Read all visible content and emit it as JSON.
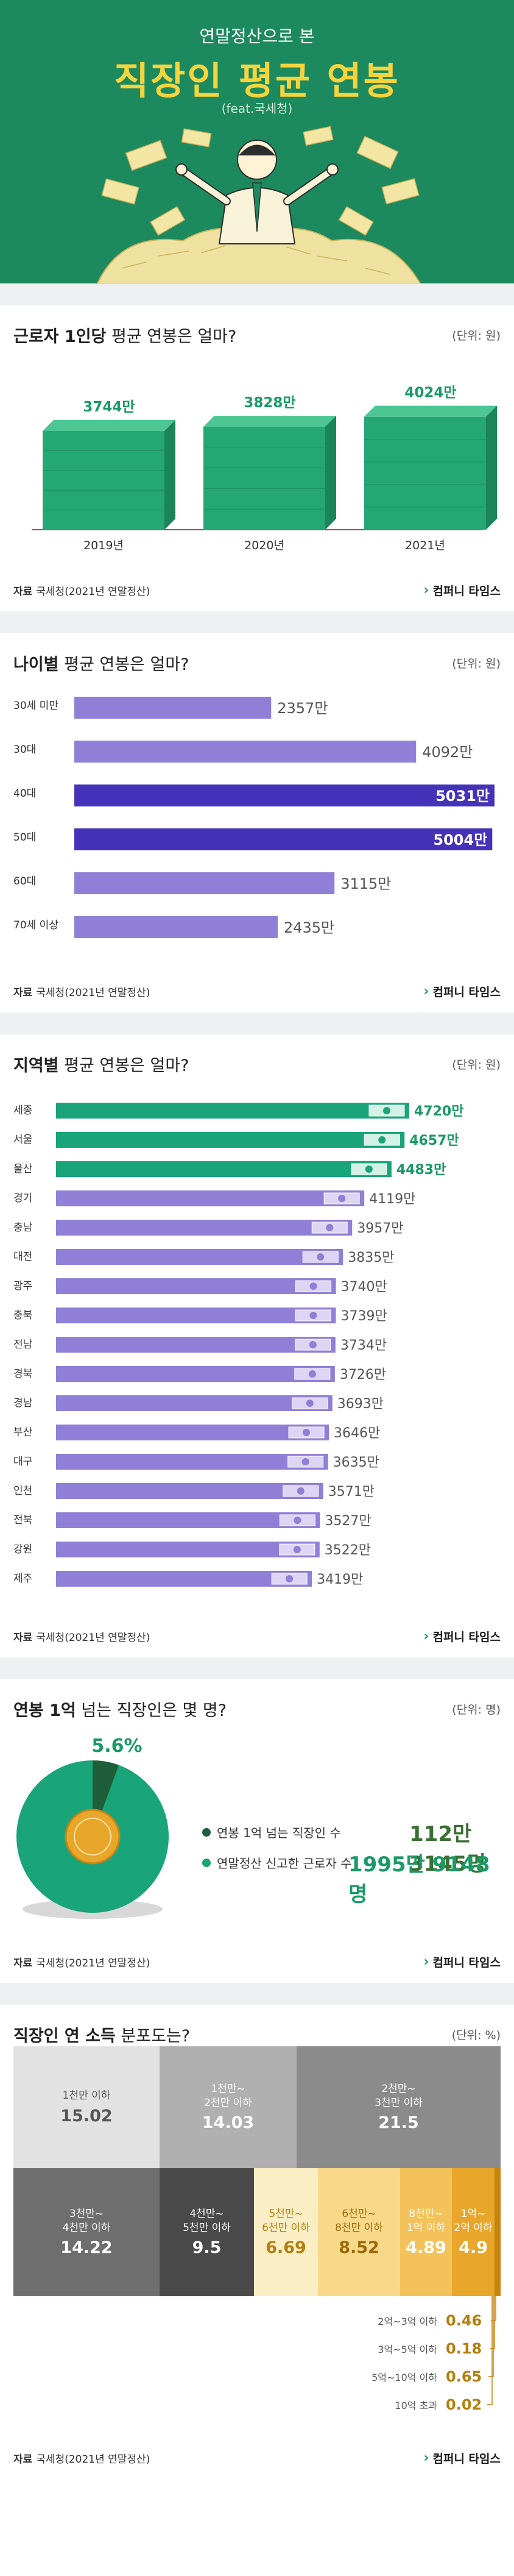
{
  "hero": {
    "pre_title": "연말정산으로 본",
    "title": "직장인 평균 연봉",
    "feat": "(feat.국세청)"
  },
  "colors": {
    "brand_green": "#1c8a5e",
    "accent_green": "#1aa47a",
    "purple_light": "#8f7fd6",
    "purple_dark": "#4433b8",
    "gold": "#e8a62a"
  },
  "common": {
    "source_label": "자료",
    "source_text": "국세청(2021년 연말정산)",
    "brand": "컴퍼니 타임스",
    "brand_icon": "chevron-logo-icon"
  },
  "sections": {
    "s1": {
      "title_bold": "근로자 1인당",
      "title_rest": " 평균 연봉은 얼마?",
      "unit": "(단위: 원)"
    },
    "s2": {
      "title_bold": "나이별",
      "title_rest": " 평균 연봉은 얼마?",
      "unit": "(단위: 원)"
    },
    "s3": {
      "title_bold": "지역별",
      "title_rest": " 평균 연봉은 얼마?",
      "unit": "(단위: 원)"
    },
    "s4": {
      "title_bold": "연봉 1억",
      "title_rest": " 넘는 직장인은 몇 명?",
      "unit": "(단위: 명)"
    },
    "s5": {
      "title_bold": "직장인 연 소득",
      "title_rest": " 분포도는?",
      "unit": "(단위: %)"
    }
  },
  "chart_data": [
    {
      "type": "bar",
      "categories": [
        "2019년",
        "2020년",
        "2021년"
      ],
      "values": [
        3744,
        3828,
        4024
      ],
      "value_labels": [
        "3744만",
        "3828만",
        "4024만"
      ],
      "unit": "(단위: 원)"
    },
    {
      "type": "bar",
      "orientation": "horizontal",
      "categories": [
        "30세 미만",
        "30대",
        "40대",
        "50대",
        "60대",
        "70세 이상"
      ],
      "values": [
        2357,
        4092,
        5031,
        5004,
        3115,
        2435
      ],
      "value_labels": [
        "2357만",
        "4092만",
        "5031만",
        "5004만",
        "3115만",
        "2435만"
      ],
      "highlight": [
        false,
        false,
        true,
        true,
        false,
        false
      ]
    },
    {
      "type": "bar",
      "orientation": "horizontal",
      "categories": [
        "세종",
        "서울",
        "울산",
        "경기",
        "충남",
        "대전",
        "광주",
        "충북",
        "전남",
        "경북",
        "경남",
        "부산",
        "대구",
        "인천",
        "전북",
        "강원",
        "제주"
      ],
      "values": [
        4720,
        4657,
        4483,
        4119,
        3957,
        3835,
        3740,
        3739,
        3734,
        3726,
        3693,
        3646,
        3635,
        3571,
        3527,
        3522,
        3419
      ],
      "value_labels": [
        "4720만",
        "4657만",
        "4483만",
        "4119만",
        "3957만",
        "3835만",
        "3740만",
        "3739만",
        "3734만",
        "3726만",
        "3693만",
        "3646만",
        "3635만",
        "3571만",
        "3527만",
        "3522만",
        "3419만"
      ],
      "highlight": [
        true,
        true,
        true,
        false,
        false,
        false,
        false,
        false,
        false,
        false,
        false,
        false,
        false,
        false,
        false,
        false,
        false
      ]
    },
    {
      "type": "pie",
      "slices": [
        {
          "name": "연봉 1억 넘는 직장인 수",
          "value": 1123145,
          "label": "112만 3145명"
        },
        {
          "name": "연말정산 신고한 근로자 수",
          "value": 19959148,
          "label": "1995만 9148명"
        }
      ],
      "percent_label": "5.6%",
      "percent": 5.6
    },
    {
      "type": "table",
      "title": "직장인 연 소득 분포도",
      "cells": [
        {
          "label": "1천만 이하",
          "value": "15.02"
        },
        {
          "label": "1천만~\n2천만 이하",
          "value": "14.03"
        },
        {
          "label": "2천만~\n3천만 이하",
          "value": "21.5"
        },
        {
          "label": "3천만~\n4천만 이하",
          "value": "14.22"
        },
        {
          "label": "4천만~\n5천만 이하",
          "value": "9.5"
        },
        {
          "label": "5천만~\n6천만 이하",
          "value": "6.69"
        },
        {
          "label": "6천만~\n8천만 이하",
          "value": "8.52"
        },
        {
          "label": "8천만~\n1억 이하",
          "value": "4.89"
        },
        {
          "label": "1억~\n2억 이하",
          "value": "4.9"
        }
      ],
      "small": [
        {
          "label": "2억~3억 이하",
          "value": "0.46"
        },
        {
          "label": "3억~5억 이하",
          "value": "0.18"
        },
        {
          "label": "5억~10억 이하",
          "value": "0.65"
        },
        {
          "label": "10억 초과",
          "value": "0.02"
        }
      ]
    }
  ]
}
